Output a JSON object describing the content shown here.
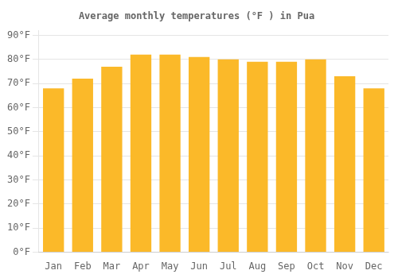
{
  "chart_data": {
    "type": "bar",
    "title": "Average monthly temperatures (°F ) in Pua",
    "categories": [
      "Jan",
      "Feb",
      "Mar",
      "Apr",
      "May",
      "Jun",
      "Jul",
      "Aug",
      "Sep",
      "Oct",
      "Nov",
      "Dec"
    ],
    "values": [
      68,
      72,
      77,
      82,
      82,
      81,
      80,
      79,
      79,
      80,
      73,
      68
    ],
    "color": "#FBB929",
    "ylim": [
      0,
      92
    ],
    "yticks": [
      {
        "value": 0,
        "label": "0°F"
      },
      {
        "value": 10,
        "label": "10°F"
      },
      {
        "value": 20,
        "label": "20°F"
      },
      {
        "value": 30,
        "label": "30°F"
      },
      {
        "value": 40,
        "label": "40°F"
      },
      {
        "value": 50,
        "label": "50°F"
      },
      {
        "value": 60,
        "label": "60°F"
      },
      {
        "value": 70,
        "label": "70°F"
      },
      {
        "value": 80,
        "label": "80°F"
      },
      {
        "value": 90,
        "label": "90°F"
      }
    ],
    "grid": true
  }
}
